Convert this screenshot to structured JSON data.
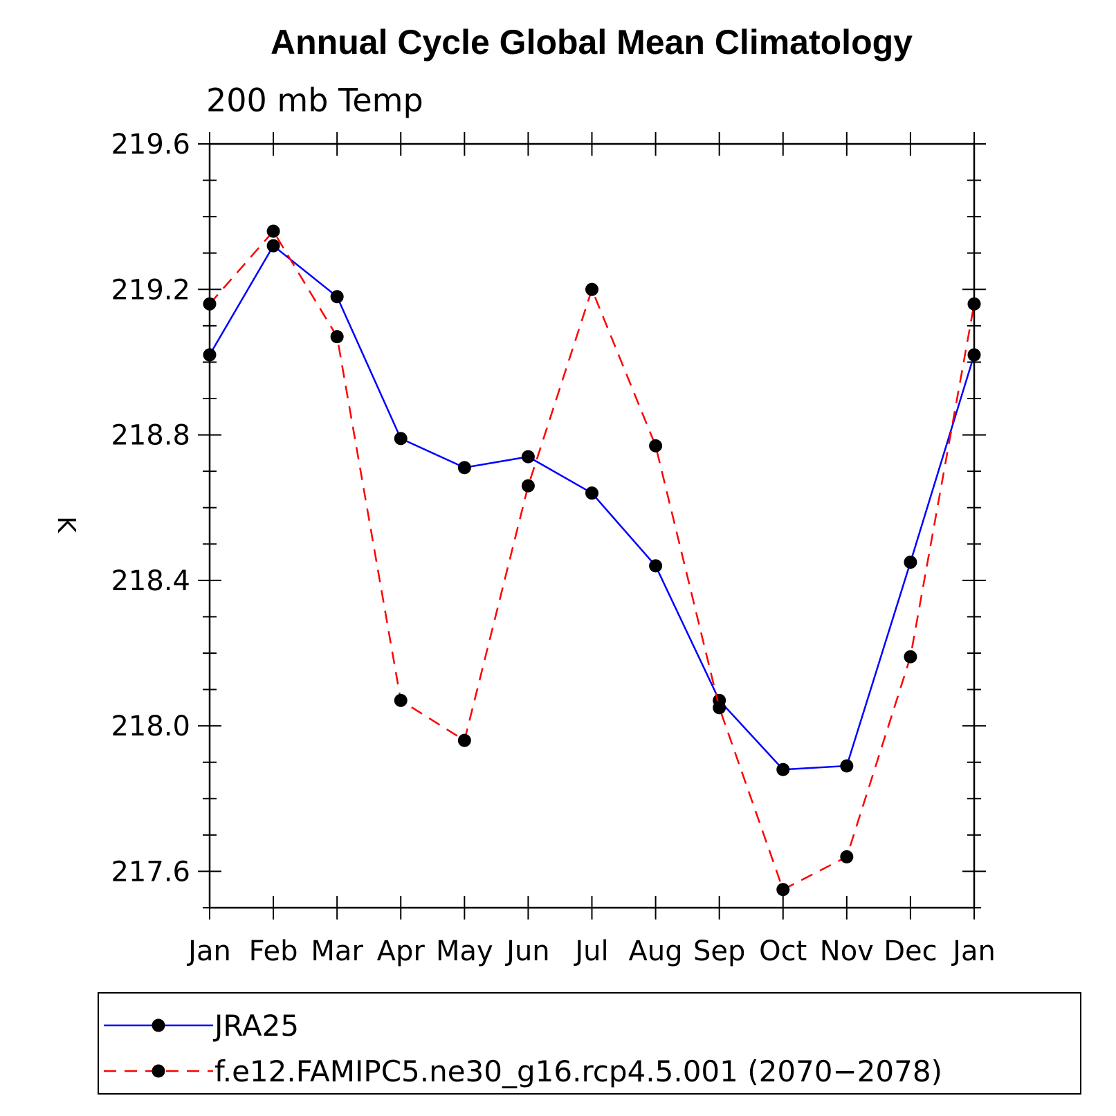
{
  "chart_data": {
    "type": "line",
    "title": "Annual Cycle Global Mean Climatology",
    "subtitle": "200 mb Temp",
    "xlabel": "",
    "ylabel": "K",
    "categories": [
      "Jan",
      "Feb",
      "Mar",
      "Apr",
      "May",
      "Jun",
      "Jul",
      "Aug",
      "Sep",
      "Oct",
      "Nov",
      "Dec",
      "Jan"
    ],
    "y_ticks": [
      "217.6",
      "218.0",
      "218.4",
      "218.8",
      "219.2",
      "219.6"
    ],
    "ylim": [
      217.5,
      219.6
    ],
    "grid": false,
    "legend_position": "bottom",
    "series": [
      {
        "name": "JRA25",
        "color": "#0000ff",
        "style": "solid",
        "marker": "dot",
        "values": [
          219.02,
          219.32,
          219.18,
          218.79,
          218.71,
          218.74,
          218.64,
          218.44,
          218.07,
          217.88,
          217.89,
          218.45,
          219.02
        ]
      },
      {
        "name": "f.e12.FAMIPC5.ne30_g16.rcp4.5.001 (2070−2078)",
        "color": "#ff0000",
        "style": "dashed",
        "marker": "dot",
        "values": [
          219.16,
          219.36,
          219.07,
          218.07,
          217.96,
          218.66,
          219.2,
          218.77,
          218.05,
          217.55,
          217.64,
          218.19,
          219.16
        ]
      }
    ]
  }
}
